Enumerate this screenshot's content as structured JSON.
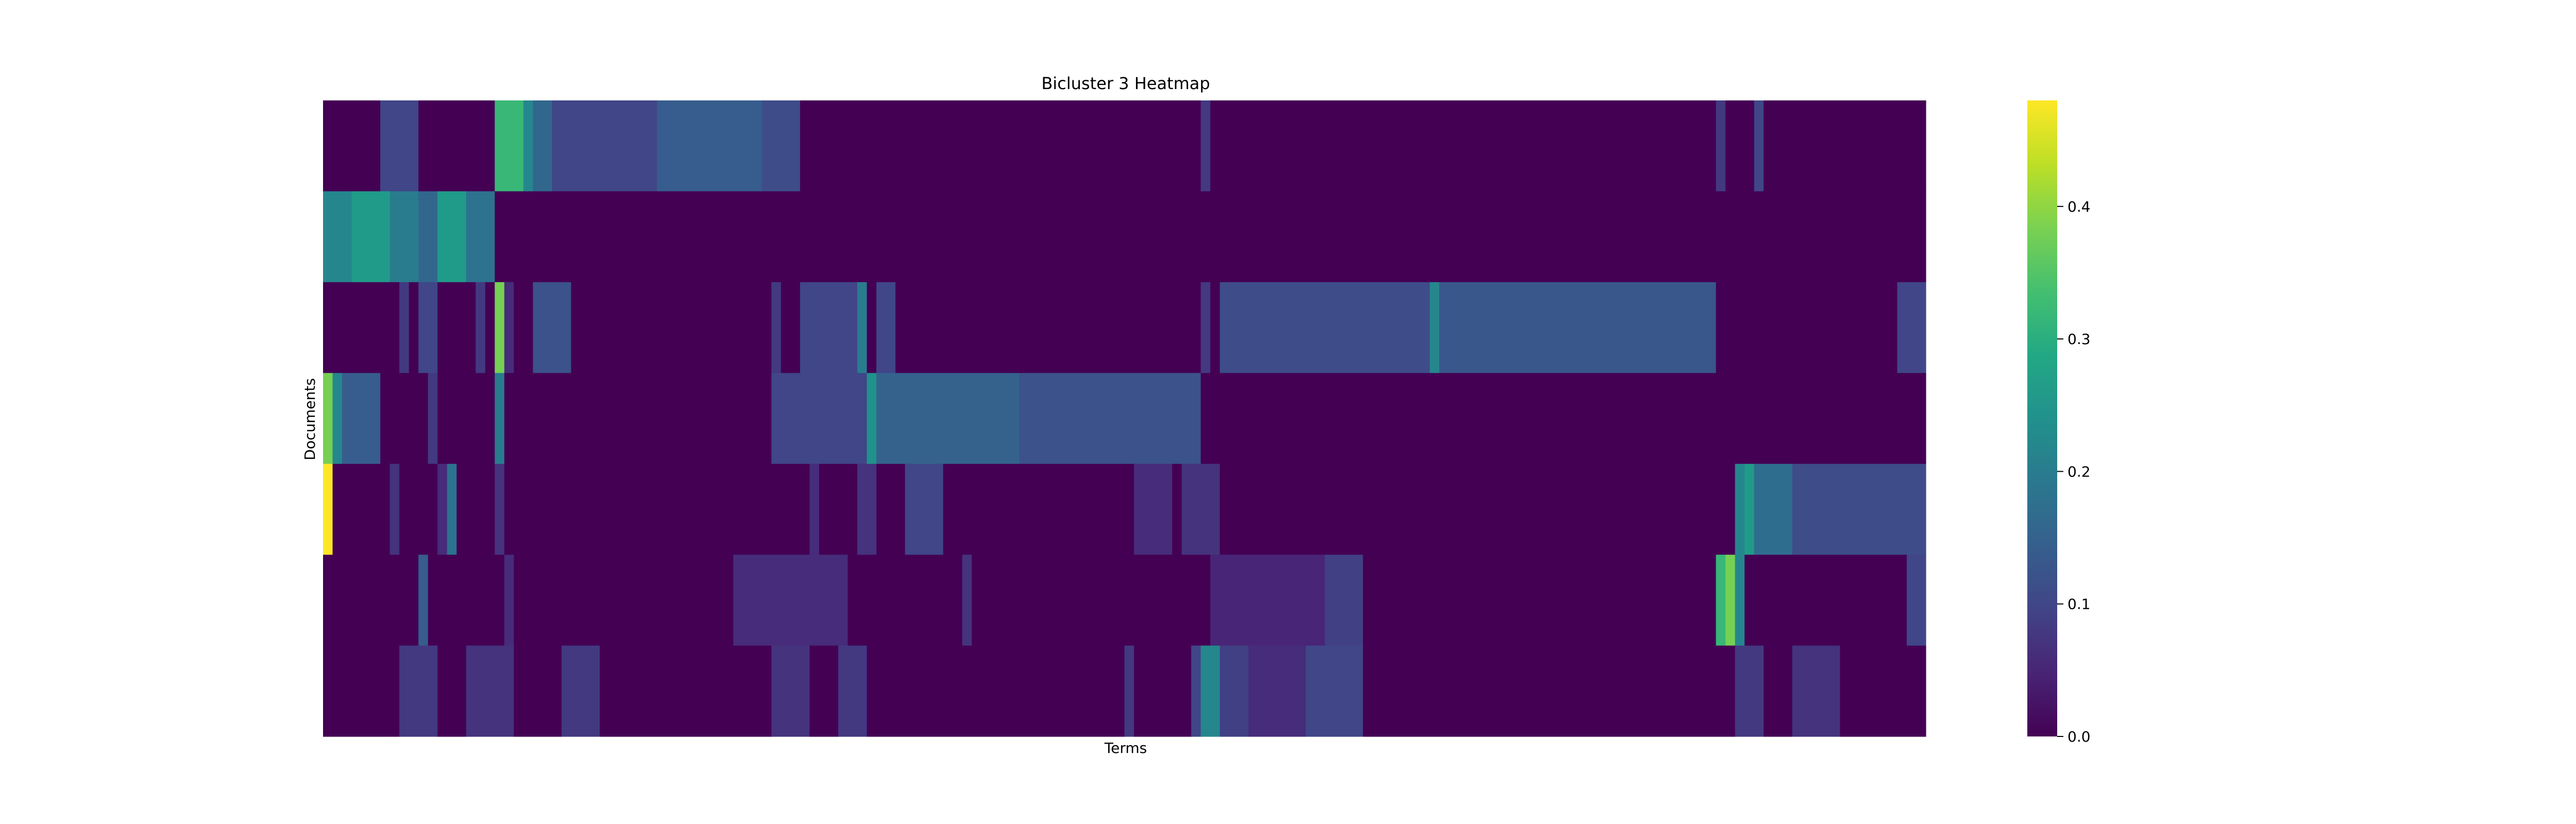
{
  "chart_data": {
    "type": "heatmap",
    "title": "Bicluster 3 Heatmap",
    "xlabel": "Terms",
    "ylabel": "Documents",
    "colormap": "viridis",
    "vmin": 0.0,
    "vmax": 0.48,
    "colorbar_ticks": [
      "0.0",
      "0.1",
      "0.2",
      "0.3",
      "0.4"
    ],
    "colorbar_tick_values": [
      0.0,
      0.1,
      0.2,
      0.3,
      0.4
    ],
    "n_columns": 168,
    "rows": [
      {
        "segments": [
          {
            "from": 0,
            "to": 5,
            "value": 0
          },
          {
            "from": 6,
            "to": 9,
            "value": 0.1
          },
          {
            "from": 10,
            "to": 17,
            "value": 0
          },
          {
            "from": 18,
            "to": 20,
            "value": 0.32
          },
          {
            "from": 21,
            "to": 21,
            "value": 0.22
          },
          {
            "from": 22,
            "to": 23,
            "value": 0.16
          },
          {
            "from": 24,
            "to": 34,
            "value": 0.1
          },
          {
            "from": 35,
            "to": 45,
            "value": 0.14
          },
          {
            "from": 46,
            "to": 49,
            "value": 0.11
          },
          {
            "from": 50,
            "to": 91,
            "value": 0
          },
          {
            "from": 92,
            "to": 92,
            "value": 0.08
          },
          {
            "from": 93,
            "to": 145,
            "value": 0
          },
          {
            "from": 146,
            "to": 146,
            "value": 0.08
          },
          {
            "from": 147,
            "to": 149,
            "value": 0
          },
          {
            "from": 150,
            "to": 150,
            "value": 0.1
          },
          {
            "from": 151,
            "to": 167,
            "value": 0
          }
        ]
      },
      {
        "segments": [
          {
            "from": 0,
            "to": 2,
            "value": 0.22
          },
          {
            "from": 3,
            "to": 6,
            "value": 0.26
          },
          {
            "from": 7,
            "to": 9,
            "value": 0.2
          },
          {
            "from": 10,
            "to": 11,
            "value": 0.16
          },
          {
            "from": 12,
            "to": 14,
            "value": 0.26
          },
          {
            "from": 15,
            "to": 17,
            "value": 0.18
          },
          {
            "from": 18,
            "to": 167,
            "value": 0
          }
        ]
      },
      {
        "segments": [
          {
            "from": 0,
            "to": 7,
            "value": 0
          },
          {
            "from": 8,
            "to": 8,
            "value": 0.08
          },
          {
            "from": 9,
            "to": 9,
            "value": 0
          },
          {
            "from": 10,
            "to": 11,
            "value": 0.1
          },
          {
            "from": 12,
            "to": 15,
            "value": 0
          },
          {
            "from": 16,
            "to": 16,
            "value": 0.08
          },
          {
            "from": 17,
            "to": 17,
            "value": 0
          },
          {
            "from": 18,
            "to": 18,
            "value": 0.38
          },
          {
            "from": 19,
            "to": 19,
            "value": 0.06
          },
          {
            "from": 20,
            "to": 21,
            "value": 0
          },
          {
            "from": 22,
            "to": 25,
            "value": 0.12
          },
          {
            "from": 26,
            "to": 46,
            "value": 0
          },
          {
            "from": 47,
            "to": 47,
            "value": 0.08
          },
          {
            "from": 48,
            "to": 49,
            "value": 0
          },
          {
            "from": 50,
            "to": 55,
            "value": 0.1
          },
          {
            "from": 56,
            "to": 56,
            "value": 0.2
          },
          {
            "from": 57,
            "to": 57,
            "value": 0
          },
          {
            "from": 58,
            "to": 59,
            "value": 0.1
          },
          {
            "from": 60,
            "to": 91,
            "value": 0
          },
          {
            "from": 92,
            "to": 92,
            "value": 0.08
          },
          {
            "from": 93,
            "to": 93,
            "value": 0
          },
          {
            "from": 94,
            "to": 115,
            "value": 0.11
          },
          {
            "from": 116,
            "to": 116,
            "value": 0.22
          },
          {
            "from": 117,
            "to": 145,
            "value": 0.13
          },
          {
            "from": 146,
            "to": 164,
            "value": 0
          },
          {
            "from": 165,
            "to": 167,
            "value": 0.1
          }
        ]
      },
      {
        "segments": [
          {
            "from": 0,
            "to": 0,
            "value": 0.38
          },
          {
            "from": 1,
            "to": 1,
            "value": 0.22
          },
          {
            "from": 2,
            "to": 5,
            "value": 0.14
          },
          {
            "from": 6,
            "to": 10,
            "value": 0
          },
          {
            "from": 11,
            "to": 11,
            "value": 0.08
          },
          {
            "from": 12,
            "to": 17,
            "value": 0
          },
          {
            "from": 18,
            "to": 18,
            "value": 0.2
          },
          {
            "from": 19,
            "to": 46,
            "value": 0
          },
          {
            "from": 47,
            "to": 56,
            "value": 0.1
          },
          {
            "from": 57,
            "to": 57,
            "value": 0.24
          },
          {
            "from": 58,
            "to": 72,
            "value": 0.15
          },
          {
            "from": 73,
            "to": 91,
            "value": 0.12
          },
          {
            "from": 92,
            "to": 167,
            "value": 0
          }
        ]
      },
      {
        "segments": [
          {
            "from": 0,
            "to": 0,
            "value": 0.48
          },
          {
            "from": 1,
            "to": 6,
            "value": 0
          },
          {
            "from": 7,
            "to": 7,
            "value": 0.07
          },
          {
            "from": 8,
            "to": 11,
            "value": 0
          },
          {
            "from": 12,
            "to": 12,
            "value": 0.06
          },
          {
            "from": 13,
            "to": 13,
            "value": 0.18
          },
          {
            "from": 14,
            "to": 17,
            "value": 0
          },
          {
            "from": 18,
            "to": 18,
            "value": 0.07
          },
          {
            "from": 19,
            "to": 50,
            "value": 0
          },
          {
            "from": 51,
            "to": 51,
            "value": 0.06
          },
          {
            "from": 52,
            "to": 55,
            "value": 0
          },
          {
            "from": 56,
            "to": 57,
            "value": 0.07
          },
          {
            "from": 58,
            "to": 60,
            "value": 0
          },
          {
            "from": 61,
            "to": 64,
            "value": 0.1
          },
          {
            "from": 65,
            "to": 84,
            "value": 0
          },
          {
            "from": 85,
            "to": 88,
            "value": 0.06
          },
          {
            "from": 89,
            "to": 89,
            "value": 0
          },
          {
            "from": 90,
            "to": 93,
            "value": 0.07
          },
          {
            "from": 94,
            "to": 147,
            "value": 0
          },
          {
            "from": 148,
            "to": 148,
            "value": 0.22
          },
          {
            "from": 149,
            "to": 149,
            "value": 0.26
          },
          {
            "from": 150,
            "to": 153,
            "value": 0.17
          },
          {
            "from": 154,
            "to": 167,
            "value": 0.11
          }
        ]
      },
      {
        "segments": [
          {
            "from": 0,
            "to": 9,
            "value": 0
          },
          {
            "from": 10,
            "to": 10,
            "value": 0.14
          },
          {
            "from": 11,
            "to": 18,
            "value": 0
          },
          {
            "from": 19,
            "to": 19,
            "value": 0.06
          },
          {
            "from": 20,
            "to": 42,
            "value": 0
          },
          {
            "from": 43,
            "to": 54,
            "value": 0.06
          },
          {
            "from": 55,
            "to": 66,
            "value": 0
          },
          {
            "from": 67,
            "to": 67,
            "value": 0.07
          },
          {
            "from": 68,
            "to": 92,
            "value": 0
          },
          {
            "from": 93,
            "to": 104,
            "value": 0.05
          },
          {
            "from": 105,
            "to": 108,
            "value": 0.09
          },
          {
            "from": 109,
            "to": 145,
            "value": 0
          },
          {
            "from": 146,
            "to": 146,
            "value": 0.32
          },
          {
            "from": 147,
            "to": 147,
            "value": 0.38
          },
          {
            "from": 148,
            "to": 148,
            "value": 0.22
          },
          {
            "from": 149,
            "to": 165,
            "value": 0
          },
          {
            "from": 166,
            "to": 167,
            "value": 0.1
          }
        ]
      },
      {
        "segments": [
          {
            "from": 0,
            "to": 7,
            "value": 0
          },
          {
            "from": 8,
            "to": 11,
            "value": 0.08
          },
          {
            "from": 12,
            "to": 14,
            "value": 0
          },
          {
            "from": 15,
            "to": 19,
            "value": 0.07
          },
          {
            "from": 20,
            "to": 24,
            "value": 0
          },
          {
            "from": 25,
            "to": 28,
            "value": 0.08
          },
          {
            "from": 29,
            "to": 46,
            "value": 0
          },
          {
            "from": 47,
            "to": 50,
            "value": 0.07
          },
          {
            "from": 51,
            "to": 53,
            "value": 0
          },
          {
            "from": 54,
            "to": 56,
            "value": 0.08
          },
          {
            "from": 57,
            "to": 83,
            "value": 0
          },
          {
            "from": 84,
            "to": 84,
            "value": 0.08
          },
          {
            "from": 85,
            "to": 90,
            "value": 0
          },
          {
            "from": 91,
            "to": 91,
            "value": 0.1
          },
          {
            "from": 92,
            "to": 93,
            "value": 0.22
          },
          {
            "from": 94,
            "to": 96,
            "value": 0.09
          },
          {
            "from": 97,
            "to": 102,
            "value": 0.06
          },
          {
            "from": 103,
            "to": 108,
            "value": 0.1
          },
          {
            "from": 109,
            "to": 147,
            "value": 0
          },
          {
            "from": 148,
            "to": 150,
            "value": 0.08
          },
          {
            "from": 151,
            "to": 153,
            "value": 0
          },
          {
            "from": 154,
            "to": 158,
            "value": 0.07
          },
          {
            "from": 159,
            "to": 167,
            "value": 0
          }
        ]
      }
    ]
  }
}
